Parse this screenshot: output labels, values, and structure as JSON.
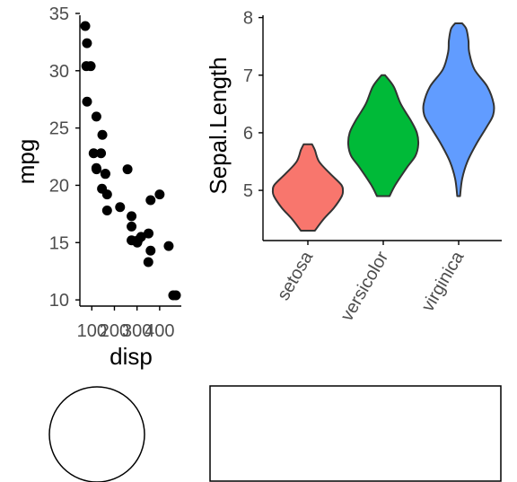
{
  "chart_data": [
    {
      "type": "scatter",
      "xlabel": "disp",
      "ylabel": "mpg",
      "xlim": [
        71.1,
        472
      ],
      "ylim": [
        10.4,
        33.9
      ],
      "x_ticks": [
        "100",
        "200",
        "300",
        "400"
      ],
      "y_ticks": [
        "10",
        "15",
        "20",
        "25",
        "30",
        "35"
      ],
      "point_color": "#000000",
      "grid": false,
      "points": [
        {
          "x": 160,
          "y": 21.0
        },
        {
          "x": 160,
          "y": 21.0
        },
        {
          "x": 108,
          "y": 22.8
        },
        {
          "x": 258,
          "y": 21.4
        },
        {
          "x": 360,
          "y": 18.7
        },
        {
          "x": 225,
          "y": 18.1
        },
        {
          "x": 360,
          "y": 14.3
        },
        {
          "x": 146.7,
          "y": 24.4
        },
        {
          "x": 140.8,
          "y": 22.8
        },
        {
          "x": 167.6,
          "y": 19.2
        },
        {
          "x": 167.6,
          "y": 17.8
        },
        {
          "x": 275.8,
          "y": 16.4
        },
        {
          "x": 275.8,
          "y": 17.3
        },
        {
          "x": 275.8,
          "y": 15.2
        },
        {
          "x": 472,
          "y": 10.4
        },
        {
          "x": 460,
          "y": 10.4
        },
        {
          "x": 440,
          "y": 14.7
        },
        {
          "x": 78.7,
          "y": 32.4
        },
        {
          "x": 75.7,
          "y": 30.4
        },
        {
          "x": 71.1,
          "y": 33.9
        },
        {
          "x": 120.1,
          "y": 21.5
        },
        {
          "x": 318,
          "y": 15.5
        },
        {
          "x": 304,
          "y": 15.2
        },
        {
          "x": 350,
          "y": 13.3
        },
        {
          "x": 400,
          "y": 19.2
        },
        {
          "x": 79,
          "y": 27.3
        },
        {
          "x": 120.3,
          "y": 26.0
        },
        {
          "x": 95.1,
          "y": 30.4
        },
        {
          "x": 351,
          "y": 15.8
        },
        {
          "x": 145,
          "y": 19.7
        },
        {
          "x": 301,
          "y": 15.0
        },
        {
          "x": 121,
          "y": 21.4
        }
      ]
    },
    {
      "type": "violin",
      "xlabel": "",
      "ylabel": "Sepal.Length",
      "ylim": [
        4.3,
        7.9
      ],
      "y_ticks": [
        "5",
        "6",
        "7",
        "8"
      ],
      "categories": [
        "setosa",
        "versicolor",
        "virginica"
      ],
      "grid": false,
      "series": [
        {
          "name": "setosa",
          "min": 4.3,
          "max": 5.8,
          "color": "#F8766D",
          "profile": [
            [
              4.3,
              0.2
            ],
            [
              4.5,
              0.45
            ],
            [
              4.7,
              0.75
            ],
            [
              4.9,
              0.97
            ],
            [
              5.0,
              1.0
            ],
            [
              5.1,
              0.95
            ],
            [
              5.3,
              0.62
            ],
            [
              5.5,
              0.32
            ],
            [
              5.7,
              0.2
            ],
            [
              5.8,
              0.12
            ]
          ]
        },
        {
          "name": "versicolor",
          "min": 4.9,
          "max": 7.0,
          "color": "#00BA38",
          "profile": [
            [
              4.9,
              0.18
            ],
            [
              5.1,
              0.35
            ],
            [
              5.4,
              0.68
            ],
            [
              5.6,
              0.92
            ],
            [
              5.8,
              1.0
            ],
            [
              6.0,
              0.96
            ],
            [
              6.2,
              0.8
            ],
            [
              6.5,
              0.5
            ],
            [
              6.8,
              0.3
            ],
            [
              7.0,
              0.05
            ]
          ]
        },
        {
          "name": "virginica",
          "min": 4.9,
          "max": 7.9,
          "color": "#619CFF",
          "profile": [
            [
              4.9,
              0.04
            ],
            [
              5.2,
              0.1
            ],
            [
              5.5,
              0.25
            ],
            [
              5.8,
              0.5
            ],
            [
              6.1,
              0.8
            ],
            [
              6.3,
              0.98
            ],
            [
              6.5,
              1.0
            ],
            [
              6.8,
              0.82
            ],
            [
              7.1,
              0.45
            ],
            [
              7.4,
              0.3
            ],
            [
              7.6,
              0.28
            ],
            [
              7.8,
              0.22
            ],
            [
              7.9,
              0.1
            ]
          ]
        }
      ]
    }
  ],
  "shapes": {
    "circle_label": "",
    "rect_label": ""
  }
}
